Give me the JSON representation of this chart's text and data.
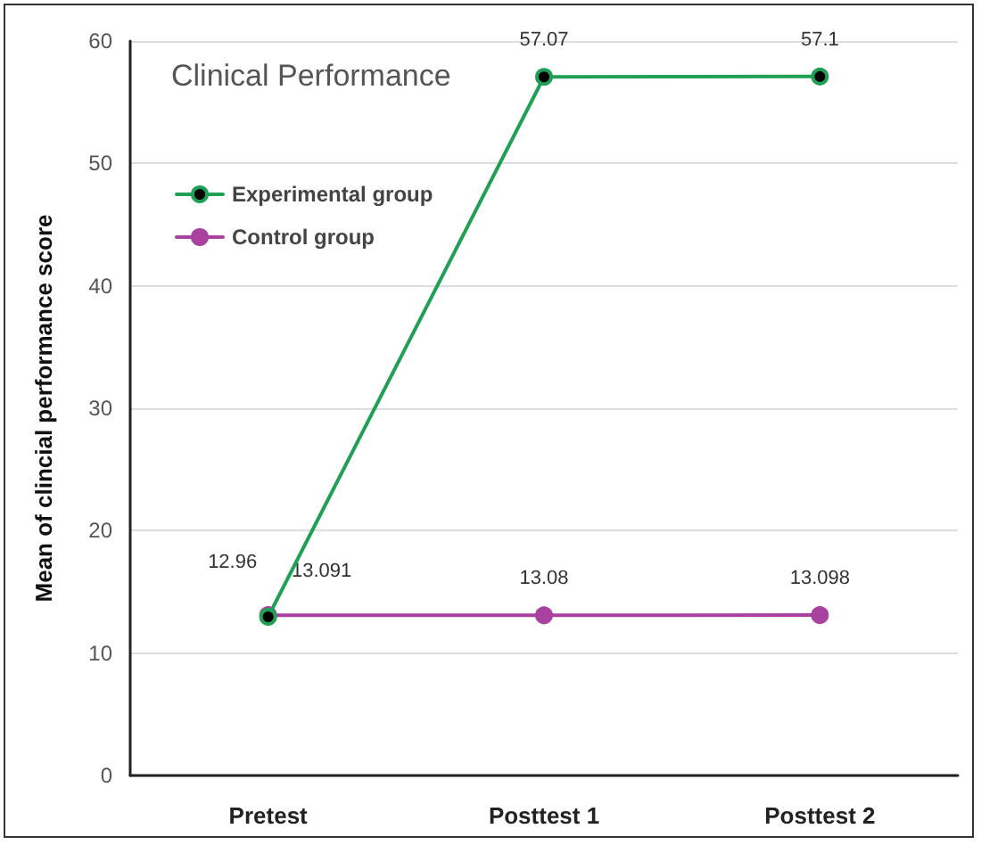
{
  "chart_data": {
    "type": "line",
    "title": "Clinical Performance",
    "ylabel": "Mean of clincial performance score",
    "categories": [
      "Pretest",
      "Posttest 1",
      "Posttest 2"
    ],
    "series": [
      {
        "name": "Experimental group",
        "color": "#1fa055",
        "values": [
          12.96,
          57.07,
          57.1
        ]
      },
      {
        "name": "Control group",
        "color": "#a8419f",
        "values": [
          13.091,
          13.08,
          13.098
        ]
      }
    ],
    "ylim": [
      0,
      60
    ],
    "yticks": [
      0,
      10,
      20,
      30,
      40,
      50,
      60
    ],
    "grid": "y",
    "legend": "top left",
    "marker": "circle",
    "line_style": "solid",
    "data_labels": true
  }
}
